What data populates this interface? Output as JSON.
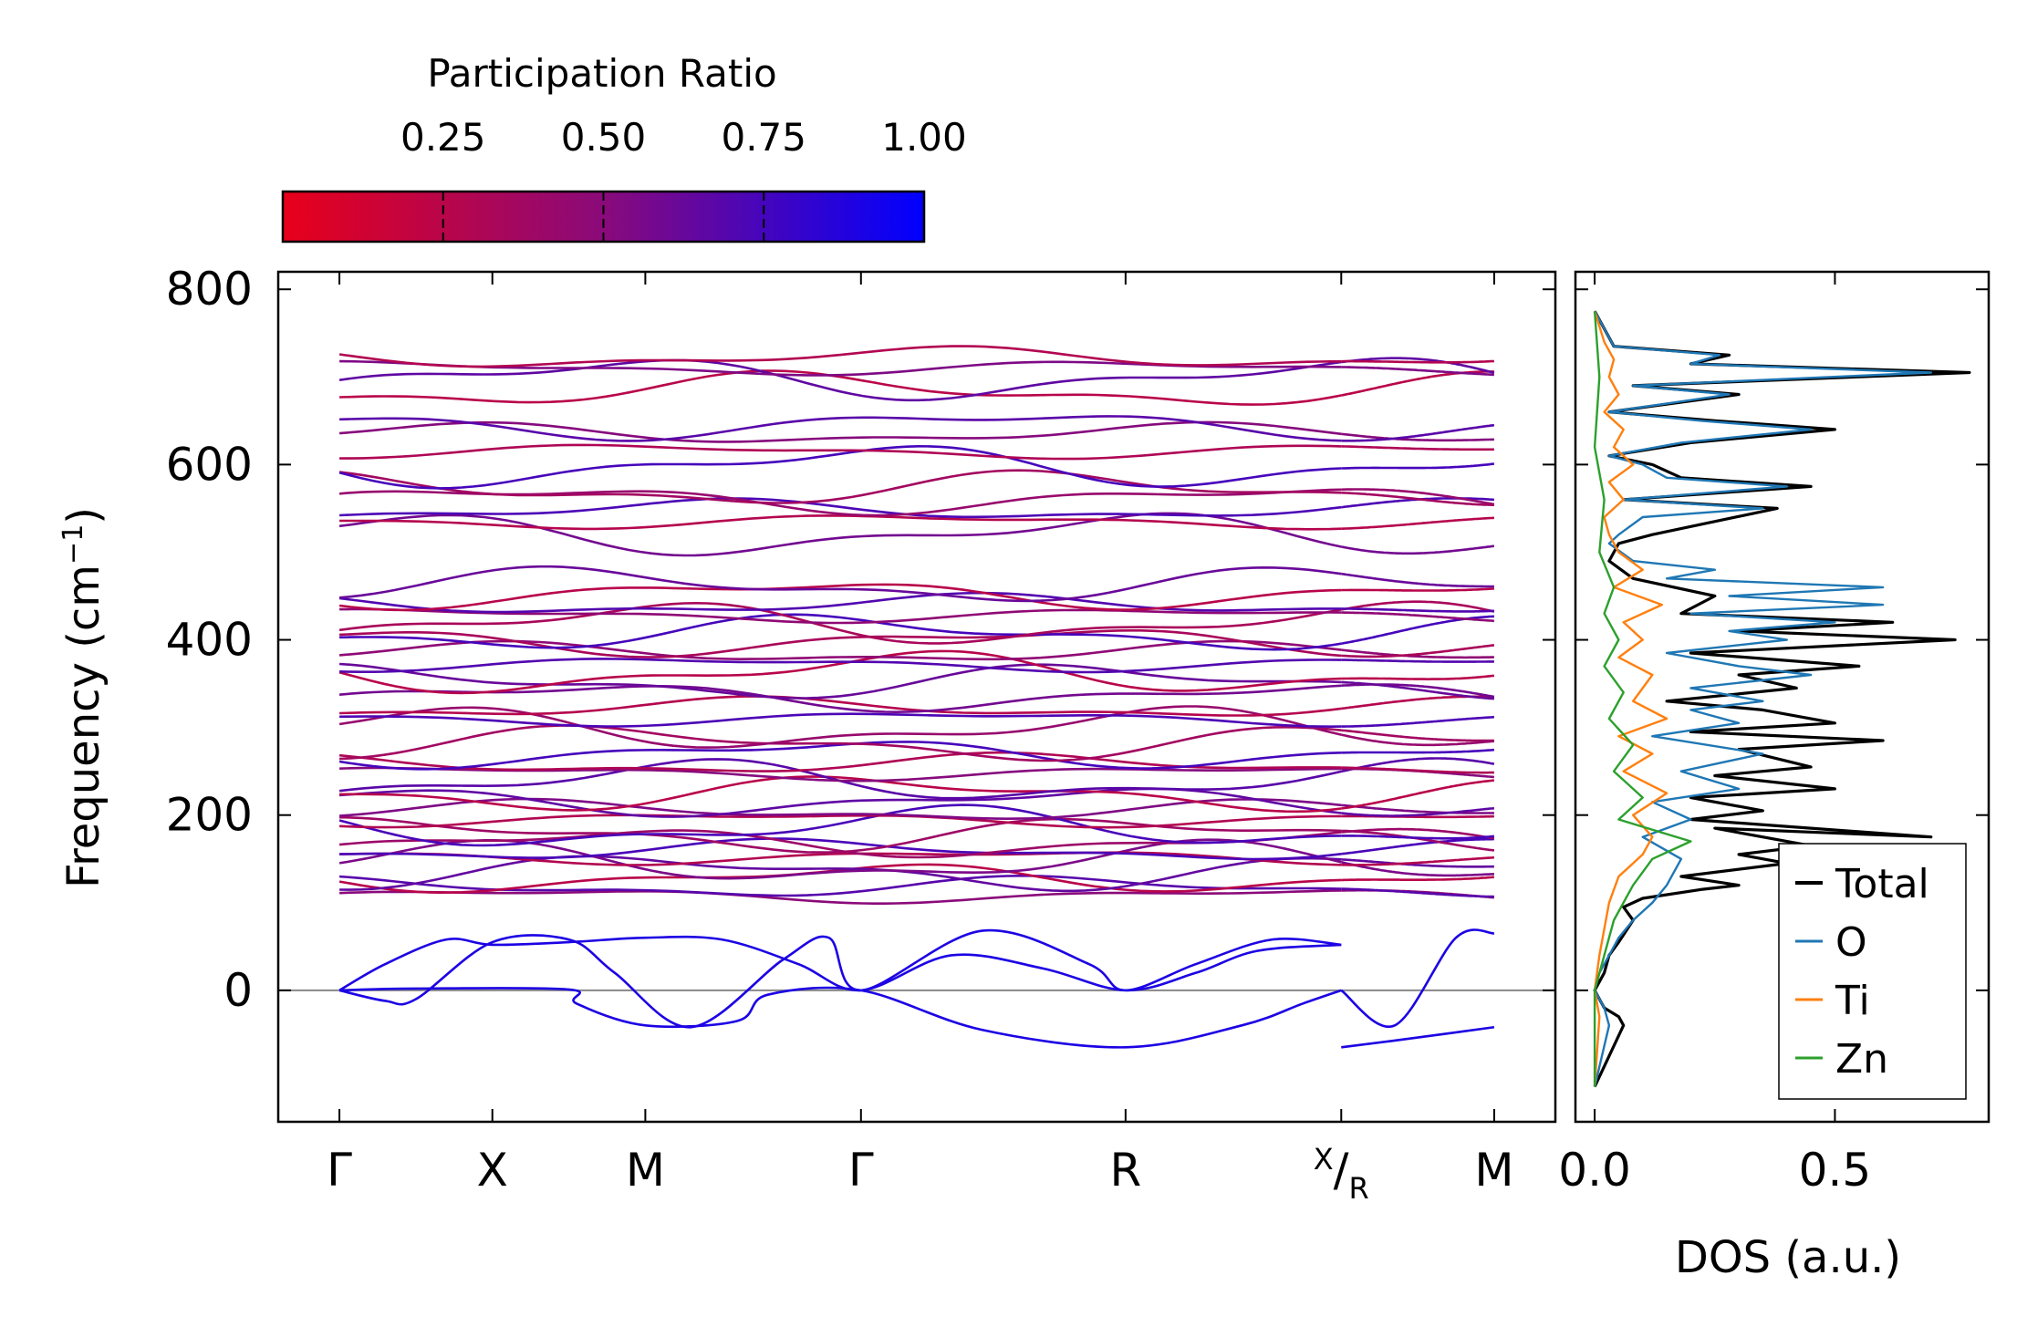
{
  "chart_data": [
    {
      "type": "line",
      "name": "phonon-band-structure",
      "ylabel": "Frequency (cm",
      "ylabel_sup": "−1",
      "ylabel_end": ")",
      "ylim": [
        -150,
        820
      ],
      "yticks": [
        {
          "value": 0,
          "label": "0"
        },
        {
          "value": 200,
          "label": "200"
        },
        {
          "value": 400,
          "label": "400"
        },
        {
          "value": 600,
          "label": "600"
        },
        {
          "value": 800,
          "label": "800"
        }
      ],
      "path_labels": [
        {
          "position": 0.0,
          "label": "Γ"
        },
        {
          "position": 1.0,
          "label": "X"
        },
        {
          "position": 2.0,
          "label": "M"
        },
        {
          "position": 3.41,
          "label": "Γ"
        },
        {
          "position": 5.14,
          "label": "R"
        },
        {
          "position": 6.55,
          "label": "X",
          "sub": "R",
          "slash": "/"
        },
        {
          "position": 7.55,
          "label": "M"
        }
      ],
      "xlim": [
        -0.4,
        7.95
      ],
      "break_at": 6.55,
      "high_bands": [
        108,
        118,
        128,
        135,
        145,
        152,
        160,
        168,
        178,
        185,
        195,
        205,
        215,
        225,
        238,
        248,
        258,
        270,
        282,
        298,
        310,
        322,
        335,
        352,
        362,
        372,
        385,
        398,
        408,
        418,
        428,
        440,
        452,
        462,
        520,
        535,
        548,
        560,
        572,
        598,
        615,
        635,
        645,
        685,
        698,
        710,
        722
      ],
      "acoustic_curves": [
        {
          "name": "acoustic-1",
          "x": [
            0.0,
            0.3,
            0.7,
            1.0,
            1.5,
            2.0,
            2.5,
            3.0,
            3.41,
            4.0,
            4.6,
            5.14,
            5.6,
            6.0,
            6.55
          ],
          "y": [
            0,
            30,
            58,
            52,
            55,
            60,
            58,
            30,
            0,
            40,
            25,
            0,
            20,
            45,
            52
          ]
        },
        {
          "name": "acoustic-2",
          "x": [
            0.0,
            0.3,
            0.5,
            1.0,
            1.5,
            1.8,
            2.3,
            2.9,
            3.2,
            3.41,
            4.2,
            4.9,
            5.14,
            5.6,
            6.1,
            6.55
          ],
          "y": [
            0,
            -12,
            -10,
            55,
            58,
            20,
            -42,
            35,
            60,
            0,
            68,
            30,
            0,
            30,
            58,
            52
          ]
        },
        {
          "name": "acoustic-3",
          "x": [
            0.0,
            0.5,
            1.5,
            1.55,
            2.0,
            2.6,
            2.8,
            3.41,
            4.2,
            5.14,
            5.9,
            6.3,
            6.55
          ],
          "y": [
            0,
            2,
            1,
            -15,
            -40,
            -35,
            -5,
            0,
            -45,
            -65,
            -40,
            -15,
            0
          ]
        },
        {
          "name": "acoustic-4",
          "x": [
            6.55,
            7.0,
            7.55
          ],
          "y": [
            -65,
            -55,
            -42
          ]
        },
        {
          "name": "acoustic-5",
          "x": [
            6.55,
            6.9,
            7.3,
            7.55
          ],
          "y": [
            0,
            -40,
            60,
            65
          ]
        }
      ],
      "colorbar": {
        "title": "Participation Ratio",
        "range": [
          0.0,
          1.0
        ],
        "ticks": [
          {
            "value": 0.25,
            "label": "0.25"
          },
          {
            "value": 0.5,
            "label": "0.50"
          },
          {
            "value": 0.75,
            "label": "0.75"
          },
          {
            "value": 1.0,
            "label": "1.00"
          }
        ],
        "low_color": "#e8001a",
        "mid_color": "#8a0a7a",
        "high_color": "#0000ff"
      }
    },
    {
      "type": "line",
      "name": "density-of-states",
      "xlabel": "DOS (a.u.)",
      "xlim": [
        -0.04,
        0.82
      ],
      "xticks": [
        {
          "value": 0.0,
          "label": "0.0"
        },
        {
          "value": 0.5,
          "label": "0.5"
        }
      ],
      "ylim": [
        -150,
        820
      ],
      "series": [
        {
          "name": "Total",
          "color": "#000000",
          "x": [
            0,
            0.06,
            0.05,
            0.02,
            0.01,
            0.0,
            0.02,
            0.03,
            0.05,
            0.08,
            0.06,
            0.1,
            0.22,
            0.3,
            0.18,
            0.4,
            0.3,
            0.45,
            0.25,
            0.7,
            0.2,
            0.35,
            0.2,
            0.5,
            0.25,
            0.45,
            0.3,
            0.6,
            0.2,
            0.5,
            0.35,
            0.15,
            0.42,
            0.3,
            0.55,
            0.2,
            0.75,
            0.3,
            0.62,
            0.18,
            0.25,
            0.08,
            0.03,
            0.05,
            0.12,
            0.38,
            0.06,
            0.45,
            0.18,
            0.12,
            0.03,
            0.2,
            0.5,
            0.25,
            0.03,
            0.3,
            0.08,
            0.78,
            0.2,
            0.28,
            0.04,
            0.0
          ],
          "y": [
            -110,
            -40,
            -30,
            -20,
            -10,
            0,
            20,
            40,
            55,
            80,
            95,
            105,
            115,
            120,
            130,
            145,
            155,
            165,
            185,
            175,
            195,
            205,
            220,
            230,
            245,
            255,
            275,
            285,
            295,
            305,
            320,
            330,
            345,
            360,
            370,
            385,
            400,
            410,
            420,
            430,
            450,
            470,
            490,
            510,
            520,
            550,
            560,
            575,
            585,
            600,
            610,
            625,
            640,
            650,
            660,
            680,
            690,
            705,
            715,
            725,
            735,
            775
          ]
        },
        {
          "name": "O",
          "color": "#1f77b4",
          "x": [
            0,
            0.03,
            0.02,
            0.01,
            0.0,
            0.01,
            0.03,
            0.05,
            0.08,
            0.12,
            0.15,
            0.18,
            0.1,
            0.2,
            0.12,
            0.3,
            0.18,
            0.35,
            0.12,
            0.3,
            0.2,
            0.35,
            0.2,
            0.45,
            0.3,
            0.15,
            0.4,
            0.28,
            0.5,
            0.2,
            0.6,
            0.28,
            0.6,
            0.15,
            0.25,
            0.08,
            0.03,
            0.05,
            0.1,
            0.35,
            0.06,
            0.4,
            0.15,
            0.1,
            0.03,
            0.18,
            0.45,
            0.22,
            0.03,
            0.28,
            0.08,
            0.7,
            0.2,
            0.26,
            0.04,
            0.0
          ],
          "y": [
            -110,
            -40,
            -20,
            -10,
            0,
            20,
            40,
            60,
            80,
            100,
            120,
            150,
            175,
            195,
            215,
            230,
            250,
            270,
            290,
            305,
            320,
            330,
            345,
            360,
            370,
            385,
            400,
            410,
            420,
            430,
            440,
            450,
            460,
            470,
            480,
            490,
            510,
            520,
            540,
            550,
            560,
            575,
            585,
            600,
            610,
            625,
            640,
            650,
            660,
            680,
            690,
            705,
            715,
            725,
            735,
            775
          ]
        },
        {
          "name": "Ti",
          "color": "#ff7f0e",
          "x": [
            0,
            0.01,
            0.0,
            0.01,
            0.03,
            0.05,
            0.1,
            0.12,
            0.08,
            0.15,
            0.06,
            0.12,
            0.05,
            0.15,
            0.08,
            0.12,
            0.05,
            0.1,
            0.06,
            0.14,
            0.04,
            0.1,
            0.05,
            0.03,
            0.02,
            0.06,
            0.03,
            0.08,
            0.04,
            0.06,
            0.02,
            0.05,
            0.03,
            0.04,
            0.02,
            0.0
          ],
          "y": [
            -110,
            -30,
            0,
            40,
            100,
            130,
            155,
            175,
            200,
            225,
            250,
            270,
            290,
            310,
            330,
            360,
            380,
            400,
            420,
            440,
            460,
            480,
            500,
            520,
            540,
            560,
            580,
            600,
            620,
            640,
            660,
            680,
            700,
            720,
            740,
            775
          ]
        },
        {
          "name": "Zn",
          "color": "#2ca02c",
          "x": [
            0,
            0.0,
            0.02,
            0.04,
            0.08,
            0.12,
            0.2,
            0.05,
            0.1,
            0.04,
            0.08,
            0.03,
            0.06,
            0.02,
            0.05,
            0.02,
            0.04,
            0.01,
            0.02,
            0.0,
            0.01,
            0.0
          ],
          "y": [
            -110,
            0,
            40,
            80,
            120,
            150,
            170,
            195,
            220,
            250,
            280,
            310,
            340,
            370,
            400,
            430,
            460,
            500,
            560,
            620,
            700,
            775
          ]
        }
      ],
      "legend": {
        "placement": "lower-right",
        "entries": [
          "Total",
          "O",
          "Ti",
          "Zn"
        ]
      }
    }
  ]
}
